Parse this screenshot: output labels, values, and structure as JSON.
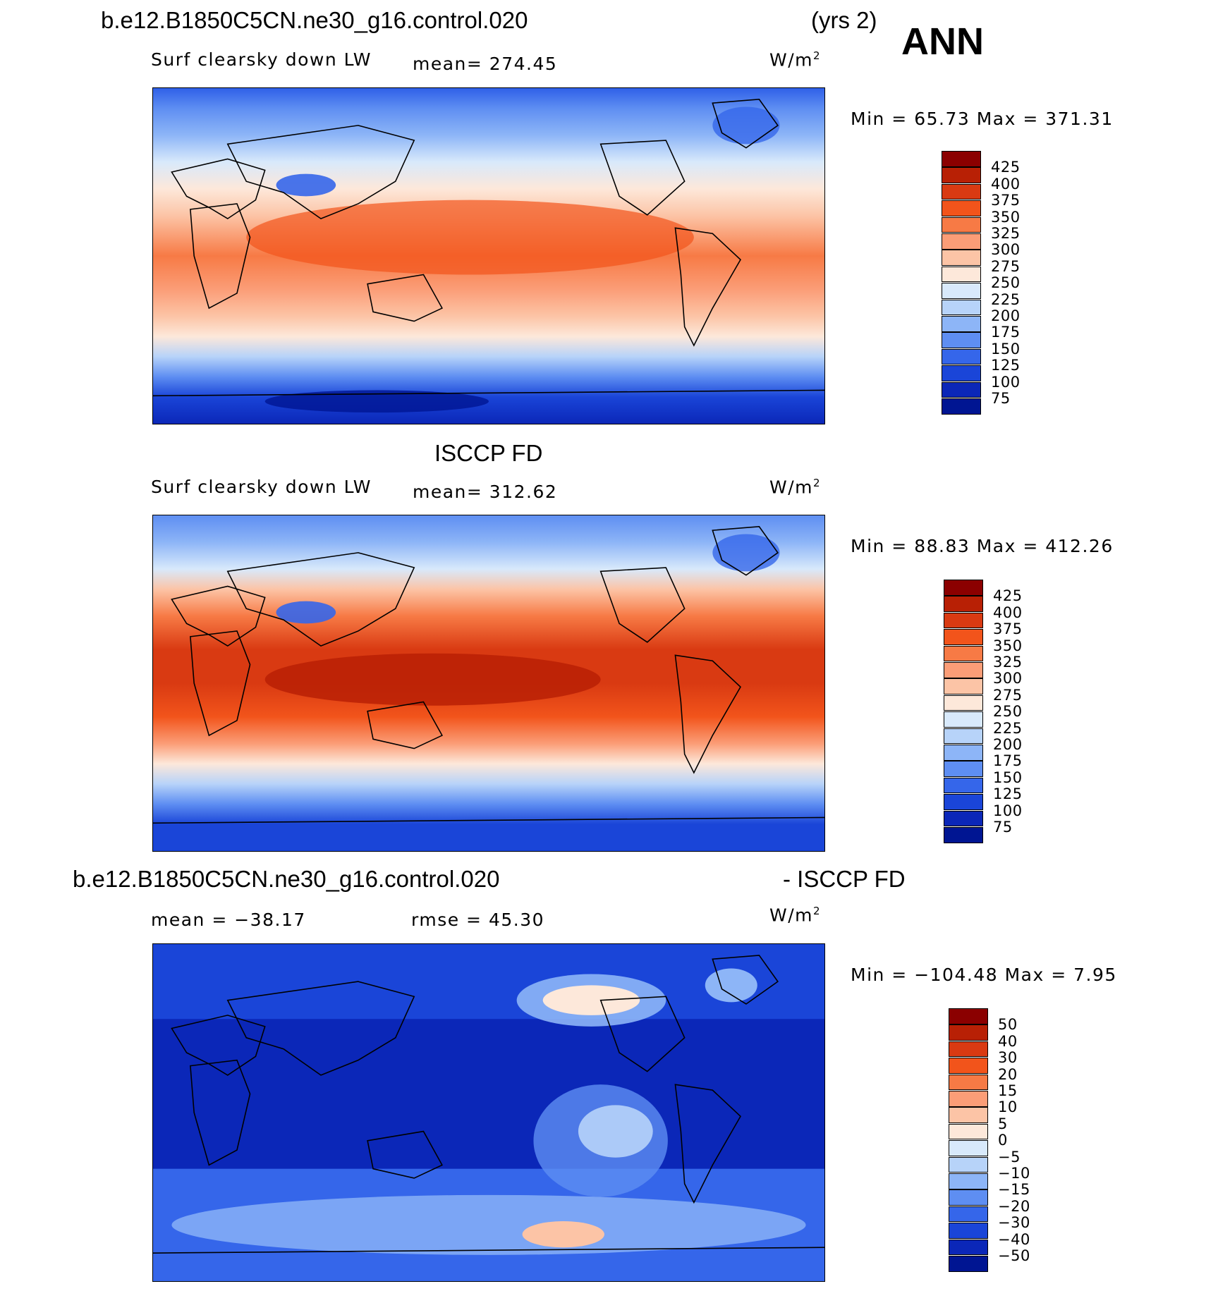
{
  "header": {
    "case_name": "b.e12.B1850C5CN.ne30_g16.control.020",
    "years": "(yrs 2)",
    "season": "ANN"
  },
  "panels": [
    {
      "title": "",
      "variable": "Surf clearsky down LW",
      "stat_left": "",
      "mean": "mean=  274.45",
      "units_base": "W/m",
      "units_exp": "2",
      "minmax": "Min =   65.73 Max = 371.31",
      "colorbar": [
        "425",
        "400",
        "375",
        "350",
        "325",
        "300",
        "275",
        "250",
        "225",
        "200",
        "175",
        "150",
        "125",
        "100",
        "75"
      ]
    },
    {
      "title": "ISCCP FD",
      "variable": "Surf clearsky down LW",
      "stat_left": "",
      "mean": "mean=  312.62",
      "units_base": "W/m",
      "units_exp": "2",
      "minmax": "Min =   88.83 Max = 412.26",
      "colorbar": [
        "425",
        "400",
        "375",
        "350",
        "325",
        "300",
        "275",
        "250",
        "225",
        "200",
        "175",
        "150",
        "125",
        "100",
        "75"
      ]
    },
    {
      "title_left": "b.e12.B1850C5CN.ne30_g16.control.020",
      "title_right": "- ISCCP FD",
      "stat_left": "mean = −38.17",
      "stat_mid": "rmse =   45.30",
      "units_base": "W/m",
      "units_exp": "2",
      "minmax": "Min = −104.48 Max =    7.95",
      "colorbar": [
        "50",
        "40",
        "30",
        "20",
        "15",
        "10",
        "5",
        "0",
        "−5",
        "−10",
        "−15",
        "−20",
        "−30",
        "−40",
        "−50"
      ]
    }
  ],
  "colors": {
    "scale": [
      "#8b0000",
      "#b82005",
      "#d93a12",
      "#f2541b",
      "#f77a45",
      "#fb9d77",
      "#fcc4a6",
      "#fde8da",
      "#d8e9fb",
      "#b7d3f9",
      "#8db5f7",
      "#5e8ef2",
      "#3566ea",
      "#1a45d8",
      "#0b27b8",
      "#001592"
    ]
  }
}
